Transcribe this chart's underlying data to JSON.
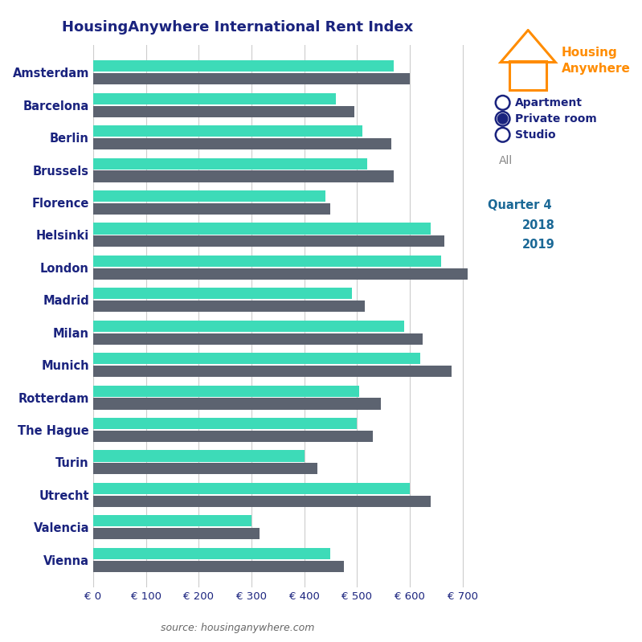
{
  "title": "HousingAnywhere International Rent Index",
  "source_text": "source: housinganywhere.com",
  "cities": [
    "Amsterdam",
    "Barcelona",
    "Berlin",
    "Brussels",
    "Florence",
    "Helsinki",
    "London",
    "Madrid",
    "Milan",
    "Munich",
    "Rotterdam",
    "The Hague",
    "Turin",
    "Utrecht",
    "Valencia",
    "Vienna"
  ],
  "values_2018": [
    570,
    460,
    510,
    520,
    440,
    640,
    660,
    490,
    590,
    620,
    505,
    500,
    400,
    600,
    300,
    450
  ],
  "values_2019": [
    600,
    495,
    565,
    570,
    450,
    665,
    710,
    515,
    625,
    680,
    545,
    530,
    425,
    640,
    315,
    475
  ],
  "color_2018": "#3DDBB8",
  "color_2019": "#5C6370",
  "xlabel_ticks": [
    0,
    100,
    200,
    300,
    400,
    500,
    600,
    700
  ],
  "xlabel_labels": [
    "€ 0",
    "€ 100",
    "€ 200",
    "€ 300",
    "€ 400",
    "€ 500",
    "€ 600",
    "€ 700"
  ],
  "xlim": [
    0,
    730
  ],
  "title_color": "#1a237e",
  "label_color": "#1a237e",
  "radio_labels": [
    "Apartment",
    "Private room",
    "Studio"
  ],
  "all_text": "All",
  "bg_color": "#ffffff",
  "grid_color": "#cccccc",
  "bar_height": 0.35,
  "housing_anywhere_color": "#FF8C00",
  "legend_title_color": "#1a6896",
  "tick_label_color": "#1a237e"
}
